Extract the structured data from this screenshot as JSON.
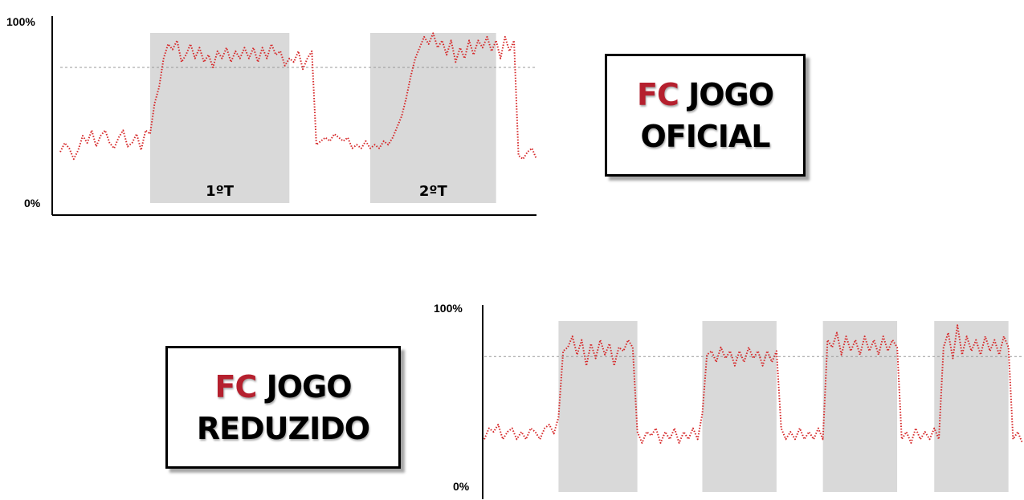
{
  "accent_color": "#b5202e",
  "trace_color": "#d62728",
  "shade_color": "#d9d9d9",
  "boxes": {
    "official": {
      "accent": "FC",
      "line1_rest": "JOGO",
      "line2": "OFICIAL"
    },
    "reduced": {
      "accent": "FC",
      "line1_rest": "JOGO",
      "line2": "REDUZIDO"
    }
  },
  "chart_data": [
    {
      "type": "line",
      "title": "",
      "xlabel": "",
      "ylabel": "",
      "ylim": [
        0,
        100
      ],
      "yticks": [
        "0%",
        "100%"
      ],
      "reference_line_y": 75,
      "shaded_periods": [
        {
          "label": "1ºT",
          "start": 20,
          "end": 51
        },
        {
          "label": "2ºT",
          "start": 69,
          "end": 97
        }
      ],
      "series": [
        {
          "name": "",
          "values": [
            28,
            33,
            30,
            24,
            29,
            37,
            33,
            40,
            31,
            37,
            40,
            33,
            30,
            36,
            40,
            31,
            33,
            38,
            29,
            40,
            38,
            55,
            64,
            80,
            88,
            85,
            90,
            78,
            82,
            88,
            80,
            86,
            78,
            82,
            75,
            84,
            80,
            86,
            78,
            84,
            80,
            86,
            80,
            86,
            78,
            86,
            80,
            88,
            82,
            84,
            76,
            80,
            78,
            84,
            74,
            80,
            84,
            32,
            34,
            36,
            34,
            38,
            36,
            34,
            36,
            30,
            32,
            30,
            34,
            30,
            32,
            30,
            34,
            32,
            36,
            42,
            48,
            58,
            70,
            80,
            86,
            92,
            88,
            94,
            86,
            90,
            82,
            90,
            78,
            86,
            80,
            90,
            82,
            90,
            86,
            92,
            84,
            90,
            80,
            92,
            84,
            90,
            26,
            24,
            28,
            30,
            24
          ]
        }
      ]
    },
    {
      "type": "line",
      "title": "",
      "xlabel": "",
      "ylabel": "",
      "ylim": [
        0,
        100
      ],
      "yticks": [
        "0%",
        "100%"
      ],
      "reference_line_y": 75,
      "shaded_periods": [
        {
          "label": "",
          "start": 16,
          "end": 33
        },
        {
          "label": "",
          "start": 47,
          "end": 63
        },
        {
          "label": "",
          "start": 73,
          "end": 89
        },
        {
          "label": "",
          "start": 97,
          "end": 113
        }
      ],
      "series": [
        {
          "name": "",
          "values": [
            30,
            36,
            34,
            38,
            30,
            34,
            36,
            30,
            34,
            30,
            36,
            34,
            30,
            36,
            38,
            33,
            42,
            78,
            80,
            86,
            76,
            84,
            70,
            82,
            74,
            84,
            76,
            82,
            70,
            80,
            78,
            84,
            80,
            34,
            28,
            34,
            32,
            36,
            28,
            34,
            30,
            36,
            28,
            34,
            30,
            36,
            30,
            44,
            76,
            78,
            72,
            80,
            74,
            78,
            70,
            78,
            72,
            80,
            74,
            78,
            70,
            78,
            72,
            78,
            36,
            30,
            34,
            30,
            36,
            30,
            34,
            30,
            36,
            30,
            84,
            80,
            88,
            76,
            86,
            78,
            84,
            76,
            86,
            78,
            84,
            76,
            86,
            78,
            84,
            80,
            30,
            34,
            28,
            36,
            30,
            34,
            30,
            36,
            30,
            80,
            88,
            74,
            92,
            76,
            86,
            78,
            84,
            76,
            86,
            78,
            84,
            76,
            86,
            80,
            30,
            34,
            28
          ]
        }
      ]
    }
  ]
}
